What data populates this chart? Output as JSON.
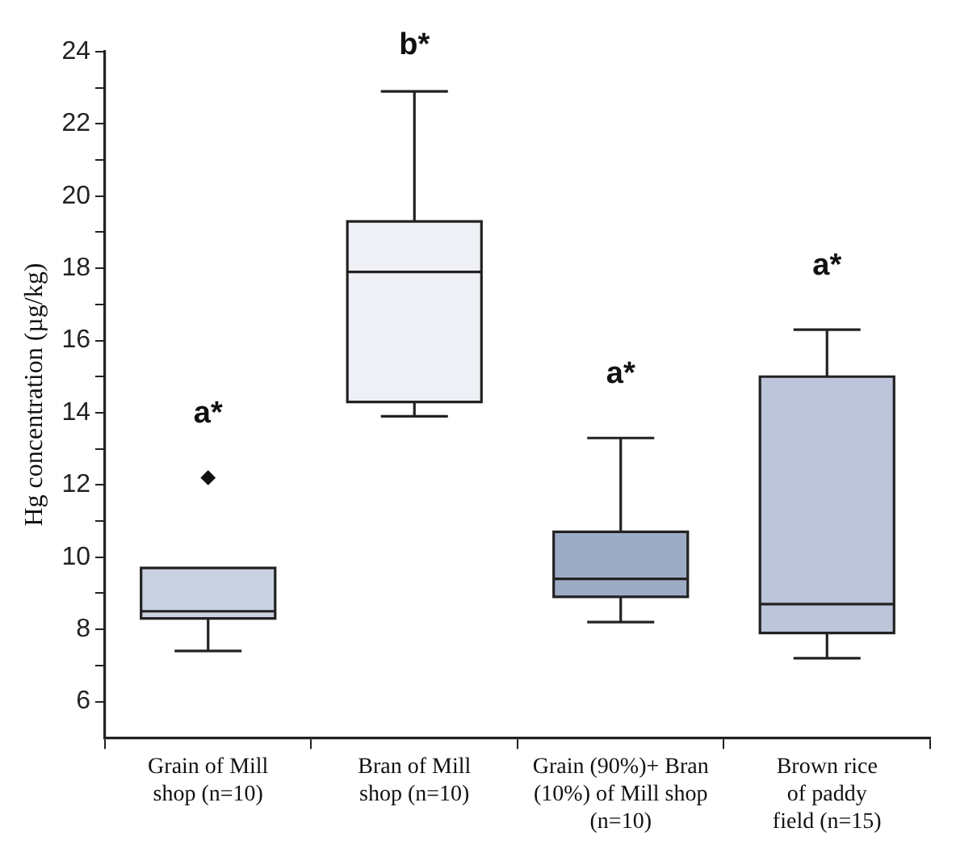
{
  "chart_data": {
    "type": "box",
    "ylabel": "Hg concentration (µg/kg)",
    "categories": [
      "Grain of Mill\nshop (n=10)",
      "Bran of Mill\nshop (n=10)",
      "Grain (90%)+ Bran\n(10%) of Mill shop\n(n=10)",
      "Brown rice\nof paddy\nfield (n=15)"
    ],
    "colors": [
      "#c9d0e0",
      "#eef0f5",
      "#9eabc6",
      "#bcc5da"
    ],
    "boxes": [
      {
        "low": 7.4,
        "q1": 8.3,
        "median": 8.5,
        "q3": 9.7,
        "high": 9.7,
        "outliers": [
          12.2
        ]
      },
      {
        "low": 13.9,
        "q1": 14.3,
        "median": 17.9,
        "q3": 19.3,
        "high": 22.9
      },
      {
        "low": 8.2,
        "q1": 8.9,
        "median": 9.4,
        "q3": 10.7,
        "high": 13.3
      },
      {
        "low": 7.2,
        "q1": 7.9,
        "median": 8.7,
        "q3": 15.0,
        "high": 16.3
      }
    ],
    "ylim": [
      5,
      24
    ],
    "yticks": [
      6,
      {
        "value": 7,
        "label": null
      },
      8,
      {
        "value": 9,
        "label": null
      },
      10,
      {
        "value": 11,
        "label": null
      },
      12,
      {
        "value": 13,
        "label": null
      },
      14,
      {
        "value": 15,
        "label": null
      },
      16,
      {
        "value": 17,
        "label": null
      },
      18,
      {
        "value": 19,
        "label": null
      },
      20,
      {
        "value": 21,
        "label": null
      },
      22,
      {
        "value": 23,
        "label": null
      },
      24
    ],
    "grid": false,
    "legend": false,
    "marker": "diamond",
    "annotations": [
      "a*",
      "b*",
      "a*",
      "a*"
    ]
  }
}
